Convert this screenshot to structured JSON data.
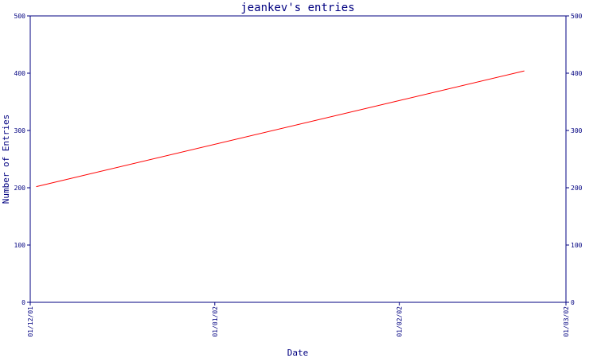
{
  "chart_data": {
    "type": "line",
    "title": "jeankev's entries",
    "xlabel": "Date",
    "ylabel": "Number of Entries",
    "x_ticks": [
      "01/12/01",
      "01/01/02",
      "01/02/02",
      "01/03/02"
    ],
    "y_ticks": [
      "0",
      "100",
      "200",
      "300",
      "400",
      "500"
    ],
    "ylim": [
      0,
      500
    ],
    "xlim": [
      "01/12/01",
      "01/03/02"
    ],
    "series": [
      {
        "color": "#ff0000",
        "points": [
          {
            "x": "02/12/01",
            "y": 202
          },
          {
            "x": "22/02/02",
            "y": 404
          }
        ]
      }
    ],
    "grid": false,
    "axis_color": "#000080"
  }
}
